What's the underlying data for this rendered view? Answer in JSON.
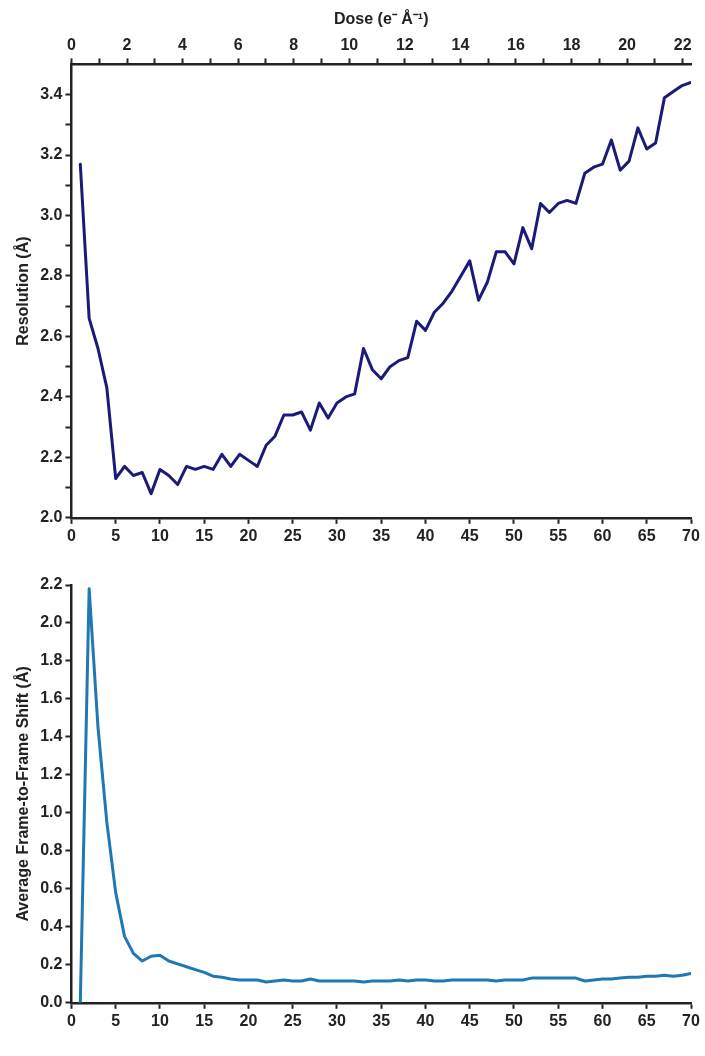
{
  "chart_data": [
    {
      "type": "line",
      "ylabel": "Resolution (Å)",
      "x2label": "Dose (e⁻ Å⁻¹)",
      "x": [
        1,
        2,
        3,
        4,
        5,
        6,
        7,
        8,
        9,
        10,
        11,
        12,
        13,
        14,
        15,
        16,
        17,
        18,
        19,
        20,
        21,
        22,
        23,
        24,
        25,
        26,
        27,
        28,
        29,
        30,
        31,
        32,
        33,
        34,
        35,
        36,
        37,
        38,
        39,
        40,
        41,
        42,
        43,
        44,
        45,
        46,
        47,
        48,
        49,
        50,
        51,
        52,
        53,
        54,
        55,
        56,
        57,
        58,
        59,
        60,
        61,
        62,
        63,
        64,
        65,
        66,
        67,
        68,
        69,
        70
      ],
      "series": [
        {
          "color": "#1b1a78",
          "values": [
            3.17,
            2.66,
            2.56,
            2.43,
            2.13,
            2.17,
            2.14,
            2.15,
            2.08,
            2.16,
            2.14,
            2.11,
            2.17,
            2.16,
            2.17,
            2.16,
            2.21,
            2.17,
            2.21,
            2.19,
            2.17,
            2.24,
            2.27,
            2.34,
            2.34,
            2.35,
            2.29,
            2.38,
            2.33,
            2.38,
            2.4,
            2.41,
            2.56,
            2.49,
            2.46,
            2.5,
            2.52,
            2.53,
            2.65,
            2.62,
            2.68,
            2.71,
            2.75,
            2.8,
            2.85,
            2.72,
            2.78,
            2.88,
            2.88,
            2.84,
            2.96,
            2.89,
            3.04,
            3.01,
            3.04,
            3.05,
            3.04,
            3.14,
            3.16,
            3.17,
            3.25,
            3.15,
            3.18,
            3.29,
            3.22,
            3.24,
            3.39,
            3.41,
            3.43,
            3.44
          ]
        }
      ],
      "xlim": [
        0,
        70
      ],
      "xticks": [
        0,
        5,
        10,
        15,
        20,
        25,
        30,
        35,
        40,
        45,
        50,
        55,
        60,
        65,
        70
      ],
      "x2lim": [
        0,
        22.3
      ],
      "x2ticks": [
        0,
        {
          "value": 1,
          "label": null
        },
        2,
        {
          "value": 3,
          "label": null
        },
        4,
        {
          "value": 5,
          "label": null
        },
        6,
        {
          "value": 7,
          "label": null
        },
        8,
        {
          "value": 9,
          "label": null
        },
        10,
        {
          "value": 11,
          "label": null
        },
        12,
        {
          "value": 13,
          "label": null
        },
        14,
        {
          "value": 15,
          "label": null
        },
        16,
        {
          "value": 17,
          "label": null
        },
        18,
        {
          "value": 19,
          "label": null
        },
        20,
        {
          "value": 21,
          "label": null
        },
        22
      ],
      "ylim": [
        2.0,
        3.5
      ],
      "yticks": [
        {
          "value": 2.0,
          "label": "2.0"
        },
        {
          "value": 2.1,
          "label": null
        },
        {
          "value": 2.2,
          "label": "2.2"
        },
        {
          "value": 2.3,
          "label": null
        },
        {
          "value": 2.4,
          "label": "2.4"
        },
        {
          "value": 2.5,
          "label": null
        },
        {
          "value": 2.6,
          "label": "2.6"
        },
        {
          "value": 2.7,
          "label": null
        },
        {
          "value": 2.8,
          "label": "2.8"
        },
        {
          "value": 2.9,
          "label": null
        },
        {
          "value": 3.0,
          "label": "3.0"
        },
        {
          "value": 3.1,
          "label": null
        },
        {
          "value": 3.2,
          "label": "3.2"
        },
        {
          "value": 3.3,
          "label": null
        },
        {
          "value": 3.4,
          "label": "3.4"
        }
      ],
      "grid": false,
      "legend": false,
      "marker": "none",
      "line_style": "solid"
    },
    {
      "type": "line",
      "ylabel": "Average Frame-to-Frame Shift (Å)",
      "x": [
        1,
        2,
        3,
        4,
        5,
        6,
        7,
        8,
        9,
        10,
        11,
        12,
        13,
        14,
        15,
        16,
        17,
        18,
        19,
        20,
        21,
        22,
        23,
        24,
        25,
        26,
        27,
        28,
        29,
        30,
        31,
        32,
        33,
        34,
        35,
        36,
        37,
        38,
        39,
        40,
        41,
        42,
        43,
        44,
        45,
        46,
        47,
        48,
        49,
        50,
        51,
        52,
        53,
        54,
        55,
        56,
        57,
        58,
        59,
        60,
        61,
        62,
        63,
        64,
        65,
        66,
        67,
        68,
        69,
        70
      ],
      "series": [
        {
          "color": "#1f78b4",
          "values": [
            0,
            2.18,
            1.45,
            0.95,
            0.58,
            0.35,
            0.26,
            0.22,
            0.245,
            0.25,
            0.22,
            0.205,
            0.19,
            0.175,
            0.16,
            0.14,
            0.135,
            0.125,
            0.12,
            0.12,
            0.12,
            0.11,
            0.115,
            0.12,
            0.115,
            0.115,
            0.125,
            0.115,
            0.115,
            0.115,
            0.115,
            0.115,
            0.11,
            0.115,
            0.115,
            0.115,
            0.12,
            0.115,
            0.12,
            0.12,
            0.115,
            0.115,
            0.12,
            0.12,
            0.12,
            0.12,
            0.12,
            0.115,
            0.12,
            0.12,
            0.12,
            0.13,
            0.13,
            0.13,
            0.13,
            0.13,
            0.13,
            0.115,
            0.12,
            0.125,
            0.125,
            0.13,
            0.135,
            0.135,
            0.14,
            0.14,
            0.145,
            0.14,
            0.145,
            0.155
          ]
        }
      ],
      "xlim": [
        0,
        70
      ],
      "xticks": [
        0,
        5,
        10,
        15,
        20,
        25,
        30,
        35,
        40,
        45,
        50,
        55,
        60,
        65,
        70
      ],
      "ylim": [
        0,
        2.2
      ],
      "yticks": [
        {
          "value": 0,
          "label": "0.0"
        },
        {
          "value": 0.2,
          "label": "0.2"
        },
        {
          "value": 0.4,
          "label": "0.4"
        },
        {
          "value": 0.6,
          "label": "0.6"
        },
        {
          "value": 0.8,
          "label": "0.8"
        },
        {
          "value": 1.0,
          "label": "1.0"
        },
        {
          "value": 1.2,
          "label": "1.2"
        },
        {
          "value": 1.4,
          "label": "1.4"
        },
        {
          "value": 1.6,
          "label": "1.6"
        },
        {
          "value": 1.8,
          "label": "1.8"
        },
        {
          "value": 2.0,
          "label": "2.0"
        },
        {
          "value": 2.2,
          "label": "2.2"
        }
      ],
      "grid": false,
      "legend": false,
      "marker": "none",
      "line_style": "solid"
    }
  ]
}
